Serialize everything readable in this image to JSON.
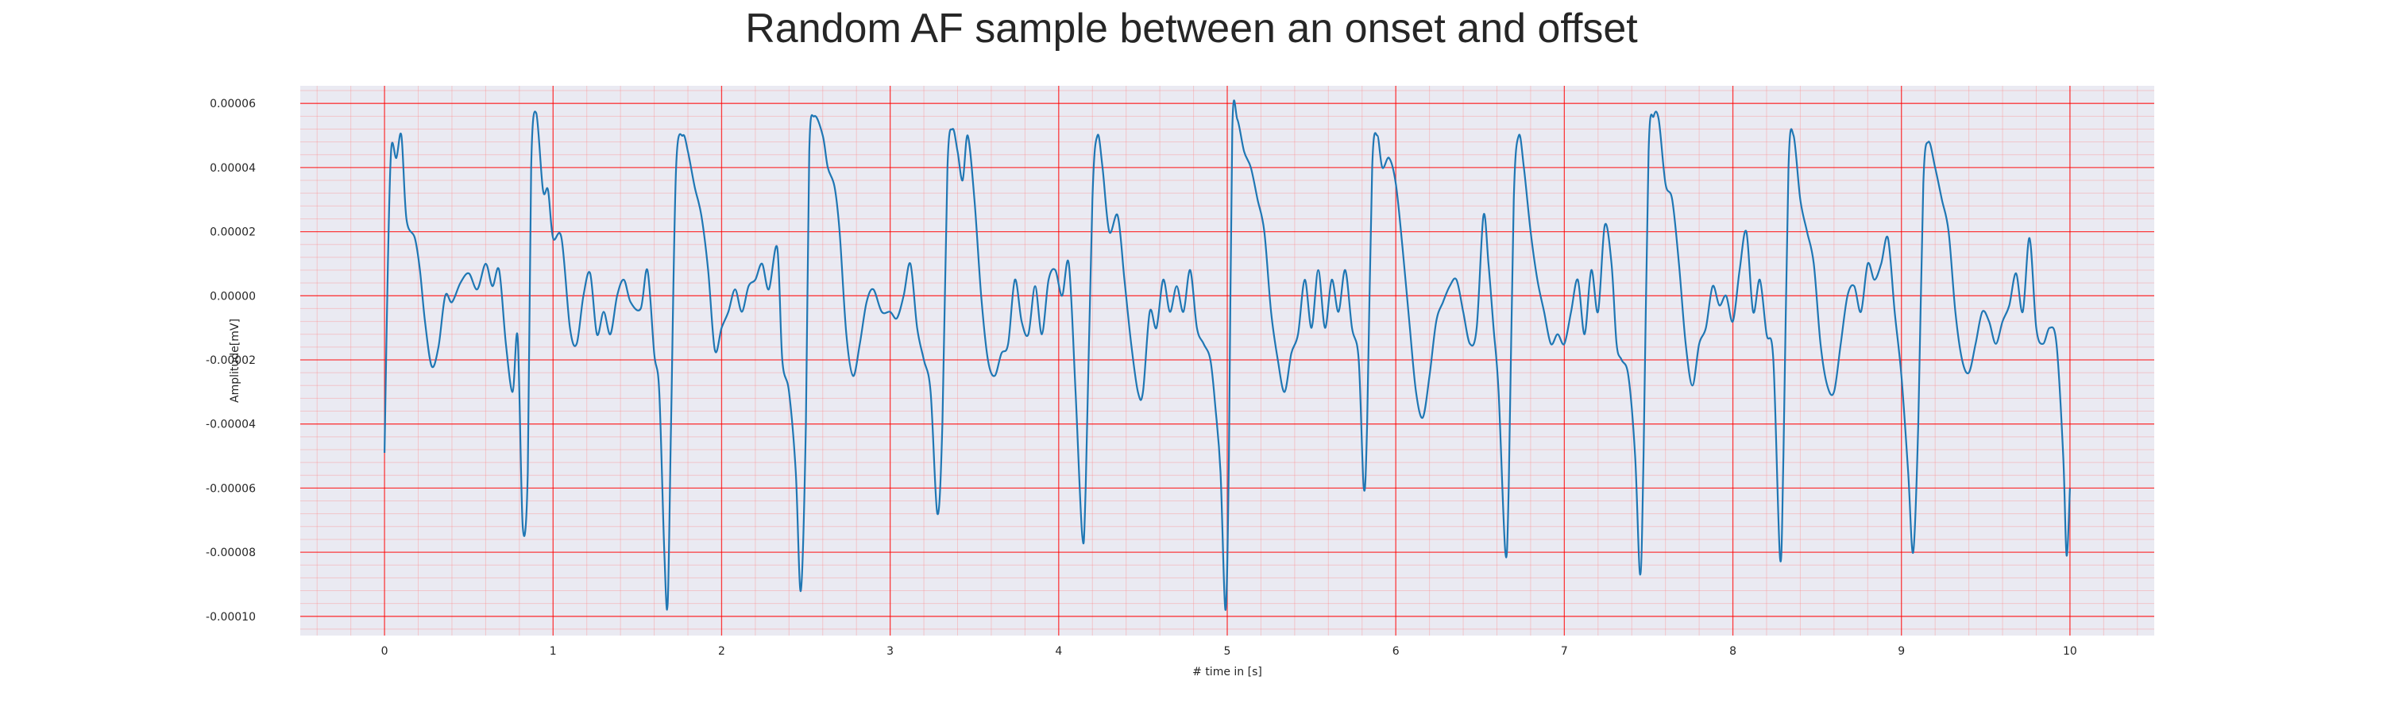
{
  "chart_data": {
    "type": "line",
    "title": "Random AF sample between an onset and offset",
    "xlabel": "# time in [s]",
    "ylabel": "Amplitude[mV]",
    "xlim": [
      -0.5,
      10.5
    ],
    "ylim": [
      -0.000106,
      6.55e-05
    ],
    "x_ticks": [
      0,
      1,
      2,
      3,
      4,
      5,
      6,
      7,
      8,
      9,
      10
    ],
    "x_tick_labels": [
      "0",
      "1",
      "2",
      "3",
      "4",
      "5",
      "6",
      "7",
      "8",
      "9",
      "10"
    ],
    "y_ticks": [
      6e-05,
      4e-05,
      2e-05,
      0.0,
      -2e-05,
      -4e-05,
      -6e-05,
      -8e-05,
      -0.0001
    ],
    "y_tick_labels": [
      "0.00006",
      "0.00004",
      "0.00002",
      "0.00000",
      "-0.00002",
      "-0.00004",
      "-0.00006",
      "-0.00008",
      "-0.00010"
    ],
    "grid": true,
    "minor_grid": true,
    "colors": {
      "line": "#1f77b4",
      "major_grid": "#ff0000",
      "minor_grid": "#ff8080",
      "background": "#eaeaf2"
    },
    "series": [
      {
        "points": [
          [
            0.0,
            -4.9e-05
          ],
          [
            0.02,
            1e-05
          ],
          [
            0.04,
            4.6e-05
          ],
          [
            0.07,
            4.3e-05
          ],
          [
            0.1,
            5e-05
          ],
          [
            0.13,
            2.4e-05
          ],
          [
            0.18,
            1.8e-05
          ],
          [
            0.21,
            8e-06
          ],
          [
            0.24,
            -8e-06
          ],
          [
            0.28,
            -2.2e-05
          ],
          [
            0.32,
            -1.6e-05
          ],
          [
            0.36,
            0.0
          ],
          [
            0.4,
            -2e-06
          ],
          [
            0.45,
            4e-06
          ],
          [
            0.5,
            7e-06
          ],
          [
            0.55,
            2e-06
          ],
          [
            0.6,
            1e-05
          ],
          [
            0.64,
            3e-06
          ],
          [
            0.68,
            8e-06
          ],
          [
            0.72,
            -1.5e-05
          ],
          [
            0.76,
            -3e-05
          ],
          [
            0.79,
            -1.3e-05
          ],
          [
            0.82,
            -7.2e-05
          ],
          [
            0.85,
            -5.5e-05
          ],
          [
            0.87,
            4e-05
          ],
          [
            0.9,
            5.7e-05
          ],
          [
            0.94,
            3.3e-05
          ],
          [
            0.97,
            3.3e-05
          ],
          [
            1.0,
            1.8e-05
          ],
          [
            1.05,
            1.8e-05
          ],
          [
            1.1,
            -1e-05
          ],
          [
            1.14,
            -1.5e-05
          ],
          [
            1.18,
            0.0
          ],
          [
            1.22,
            7e-06
          ],
          [
            1.26,
            -1.2e-05
          ],
          [
            1.3,
            -5e-06
          ],
          [
            1.34,
            -1.2e-05
          ],
          [
            1.38,
            0.0
          ],
          [
            1.42,
            5e-06
          ],
          [
            1.46,
            -2e-06
          ],
          [
            1.52,
            -4e-06
          ],
          [
            1.56,
            8e-06
          ],
          [
            1.6,
            -1.8e-05
          ],
          [
            1.63,
            -3e-05
          ],
          [
            1.66,
            -8e-05
          ],
          [
            1.68,
            -9.6e-05
          ],
          [
            1.7,
            -4e-05
          ],
          [
            1.73,
            4e-05
          ],
          [
            1.77,
            5e-05
          ],
          [
            1.8,
            4.5e-05
          ],
          [
            1.84,
            3.4e-05
          ],
          [
            1.88,
            2.5e-05
          ],
          [
            1.92,
            8e-06
          ],
          [
            1.96,
            -1.7e-05
          ],
          [
            2.0,
            -1e-05
          ],
          [
            2.04,
            -5e-06
          ],
          [
            2.08,
            2e-06
          ],
          [
            2.12,
            -5e-06
          ],
          [
            2.16,
            3e-06
          ],
          [
            2.2,
            5e-06
          ],
          [
            2.24,
            1e-05
          ],
          [
            2.28,
            2e-06
          ],
          [
            2.33,
            1.5e-05
          ],
          [
            2.36,
            -2e-05
          ],
          [
            2.4,
            -3e-05
          ],
          [
            2.44,
            -5.5e-05
          ],
          [
            2.47,
            -9.2e-05
          ],
          [
            2.5,
            -4e-05
          ],
          [
            2.52,
            4.5e-05
          ],
          [
            2.55,
            5.6e-05
          ],
          [
            2.6,
            5e-05
          ],
          [
            2.63,
            4e-05
          ],
          [
            2.67,
            3.4e-05
          ],
          [
            2.7,
            2e-05
          ],
          [
            2.74,
            -1.2e-05
          ],
          [
            2.78,
            -2.5e-05
          ],
          [
            2.82,
            -1.5e-05
          ],
          [
            2.86,
            -2e-06
          ],
          [
            2.9,
            2e-06
          ],
          [
            2.95,
            -5e-06
          ],
          [
            3.0,
            -5e-06
          ],
          [
            3.04,
            -7e-06
          ],
          [
            3.08,
            0.0
          ],
          [
            3.12,
            1e-05
          ],
          [
            3.16,
            -1e-05
          ],
          [
            3.2,
            -2e-05
          ],
          [
            3.24,
            -3e-05
          ],
          [
            3.28,
            -6.8e-05
          ],
          [
            3.31,
            -4e-05
          ],
          [
            3.34,
            4e-05
          ],
          [
            3.37,
            5.2e-05
          ],
          [
            3.4,
            4.5e-05
          ],
          [
            3.43,
            3.6e-05
          ],
          [
            3.46,
            5e-05
          ],
          [
            3.5,
            3e-05
          ],
          [
            3.54,
            0.0
          ],
          [
            3.58,
            -2e-05
          ],
          [
            3.62,
            -2.5e-05
          ],
          [
            3.66,
            -1.8e-05
          ],
          [
            3.7,
            -1.5e-05
          ],
          [
            3.74,
            5e-06
          ],
          [
            3.78,
            -8e-06
          ],
          [
            3.82,
            -1.2e-05
          ],
          [
            3.86,
            3e-06
          ],
          [
            3.9,
            -1.2e-05
          ],
          [
            3.94,
            5e-06
          ],
          [
            3.98,
            8e-06
          ],
          [
            4.02,
            0.0
          ],
          [
            4.06,
            1e-05
          ],
          [
            4.1,
            -3e-05
          ],
          [
            4.14,
            -7.5e-05
          ],
          [
            4.16,
            -6e-05
          ],
          [
            4.2,
            3e-05
          ],
          [
            4.23,
            5e-05
          ],
          [
            4.26,
            4e-05
          ],
          [
            4.3,
            2e-05
          ],
          [
            4.35,
            2.5e-05
          ],
          [
            4.39,
            5e-06
          ],
          [
            4.43,
            -1.5e-05
          ],
          [
            4.47,
            -3e-05
          ],
          [
            4.5,
            -3e-05
          ],
          [
            4.54,
            -5e-06
          ],
          [
            4.58,
            -1e-05
          ],
          [
            4.62,
            5e-06
          ],
          [
            4.66,
            -5e-06
          ],
          [
            4.7,
            3e-06
          ],
          [
            4.74,
            -5e-06
          ],
          [
            4.78,
            8e-06
          ],
          [
            4.82,
            -1e-05
          ],
          [
            4.86,
            -1.5e-05
          ],
          [
            4.9,
            -2e-05
          ],
          [
            4.93,
            -3.5e-05
          ],
          [
            4.96,
            -5.5e-05
          ],
          [
            4.99,
            -9.8e-05
          ],
          [
            5.01,
            -5e-05
          ],
          [
            5.03,
            5.2e-05
          ],
          [
            5.06,
            5.5e-05
          ],
          [
            5.1,
            4.5e-05
          ],
          [
            5.14,
            4e-05
          ],
          [
            5.18,
            3e-05
          ],
          [
            5.22,
            2e-05
          ],
          [
            5.26,
            -5e-06
          ],
          [
            5.3,
            -2e-05
          ],
          [
            5.34,
            -3e-05
          ],
          [
            5.38,
            -1.8e-05
          ],
          [
            5.42,
            -1.2e-05
          ],
          [
            5.46,
            5e-06
          ],
          [
            5.5,
            -1e-05
          ],
          [
            5.54,
            8e-06
          ],
          [
            5.58,
            -1e-05
          ],
          [
            5.62,
            5e-06
          ],
          [
            5.66,
            -5e-06
          ],
          [
            5.7,
            8e-06
          ],
          [
            5.74,
            -1e-05
          ],
          [
            5.78,
            -2e-05
          ],
          [
            5.81,
            -6e-05
          ],
          [
            5.83,
            -4e-05
          ],
          [
            5.86,
            4e-05
          ],
          [
            5.89,
            5e-05
          ],
          [
            5.92,
            4e-05
          ],
          [
            5.96,
            4.3e-05
          ],
          [
            6.0,
            3.5e-05
          ],
          [
            6.04,
            1.5e-05
          ],
          [
            6.08,
            -8e-06
          ],
          [
            6.12,
            -3e-05
          ],
          [
            6.16,
            -3.8e-05
          ],
          [
            6.2,
            -2.5e-05
          ],
          [
            6.24,
            -8e-06
          ],
          [
            6.28,
            -2e-06
          ],
          [
            6.32,
            3e-06
          ],
          [
            6.36,
            5e-06
          ],
          [
            6.4,
            -5e-06
          ],
          [
            6.44,
            -1.5e-05
          ],
          [
            6.48,
            -1e-05
          ],
          [
            6.52,
            2.5e-05
          ],
          [
            6.55,
            1e-05
          ],
          [
            6.58,
            -1e-05
          ],
          [
            6.61,
            -3e-05
          ],
          [
            6.65,
            -8e-05
          ],
          [
            6.67,
            -6e-05
          ],
          [
            6.7,
            3e-05
          ],
          [
            6.73,
            5e-05
          ],
          [
            6.76,
            4e-05
          ],
          [
            6.8,
            2e-05
          ],
          [
            6.84,
            5e-06
          ],
          [
            6.88,
            -5e-06
          ],
          [
            6.92,
            -1.5e-05
          ],
          [
            6.96,
            -1.2e-05
          ],
          [
            7.0,
            -1.5e-05
          ],
          [
            7.04,
            -5e-06
          ],
          [
            7.08,
            5e-06
          ],
          [
            7.12,
            -1.2e-05
          ],
          [
            7.16,
            8e-06
          ],
          [
            7.2,
            -5e-06
          ],
          [
            7.24,
            2.2e-05
          ],
          [
            7.28,
            1e-05
          ],
          [
            7.31,
            -1.5e-05
          ],
          [
            7.34,
            -2e-05
          ],
          [
            7.38,
            -2.5e-05
          ],
          [
            7.42,
            -5e-05
          ],
          [
            7.45,
            -8.7e-05
          ],
          [
            7.47,
            -5e-05
          ],
          [
            7.5,
            4.5e-05
          ],
          [
            7.53,
            5.6e-05
          ],
          [
            7.56,
            5.5e-05
          ],
          [
            7.6,
            3.5e-05
          ],
          [
            7.64,
            3e-05
          ],
          [
            7.68,
            1e-05
          ],
          [
            7.72,
            -1.5e-05
          ],
          [
            7.76,
            -2.8e-05
          ],
          [
            7.8,
            -1.5e-05
          ],
          [
            7.84,
            -1e-05
          ],
          [
            7.88,
            3e-06
          ],
          [
            7.92,
            -3e-06
          ],
          [
            7.96,
            0.0
          ],
          [
            8.0,
            -8e-06
          ],
          [
            8.04,
            8e-06
          ],
          [
            8.08,
            2e-05
          ],
          [
            8.12,
            -5e-06
          ],
          [
            8.16,
            5e-06
          ],
          [
            8.2,
            -1.2e-05
          ],
          [
            8.24,
            -2e-05
          ],
          [
            8.28,
            -8.2e-05
          ],
          [
            8.3,
            -5e-05
          ],
          [
            8.33,
            4e-05
          ],
          [
            8.36,
            5e-05
          ],
          [
            8.4,
            3e-05
          ],
          [
            8.44,
            2e-05
          ],
          [
            8.48,
            1e-05
          ],
          [
            8.52,
            -1.5e-05
          ],
          [
            8.56,
            -2.8e-05
          ],
          [
            8.6,
            -3e-05
          ],
          [
            8.64,
            -1.5e-05
          ],
          [
            8.68,
            0.0
          ],
          [
            8.72,
            3e-06
          ],
          [
            8.76,
            -5e-06
          ],
          [
            8.8,
            1e-05
          ],
          [
            8.84,
            5e-06
          ],
          [
            8.88,
            1e-05
          ],
          [
            8.92,
            1.8e-05
          ],
          [
            8.96,
            -5e-06
          ],
          [
            9.0,
            -2.5e-05
          ],
          [
            9.04,
            -5.5e-05
          ],
          [
            9.07,
            -8e-05
          ],
          [
            9.1,
            -4e-05
          ],
          [
            9.13,
            3.5e-05
          ],
          [
            9.16,
            4.8e-05
          ],
          [
            9.2,
            4e-05
          ],
          [
            9.24,
            3e-05
          ],
          [
            9.28,
            2e-05
          ],
          [
            9.32,
            -5e-06
          ],
          [
            9.36,
            -2e-05
          ],
          [
            9.4,
            -2.4e-05
          ],
          [
            9.44,
            -1.5e-05
          ],
          [
            9.48,
            -5e-06
          ],
          [
            9.52,
            -8e-06
          ],
          [
            9.56,
            -1.5e-05
          ],
          [
            9.6,
            -8e-06
          ],
          [
            9.64,
            -3e-06
          ],
          [
            9.68,
            7e-06
          ],
          [
            9.72,
            -5e-06
          ],
          [
            9.76,
            1.8e-05
          ],
          [
            9.8,
            -1e-05
          ],
          [
            9.84,
            -1.5e-05
          ],
          [
            9.88,
            -1e-05
          ],
          [
            9.92,
            -1.5e-05
          ],
          [
            9.96,
            -5e-05
          ],
          [
            9.98,
            -8.1e-05
          ],
          [
            10.0,
            -6e-05
          ]
        ]
      }
    ]
  }
}
